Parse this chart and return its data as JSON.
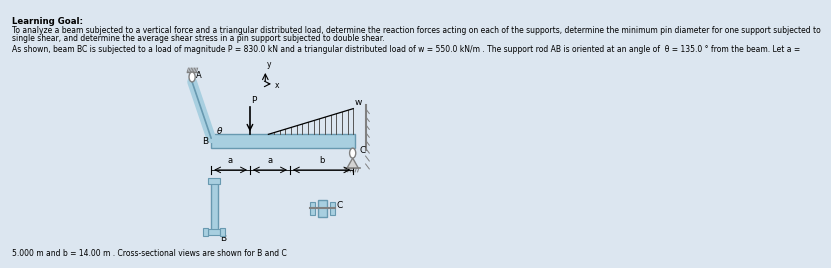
{
  "bg_color": "#dce6f0",
  "title_text": "Learning Goal:",
  "line1": "To analyze a beam subjected to a vertical force and a triangular distributed load, determine the reaction forces acting on each of the supports, determine the minimum pin diameter for one support subjected to",
  "line2": "single shear, and determine the average shear stress in a pin support subjected to double shear.",
  "line3": "As shown, beam BC is subjected to a load of magnitude P = 830.0 kN and a triangular distributed load of w = 550.0 kN/m . The support rod AB is oriented at an angle of  θ = 135.0 ° from the beam. Let a =",
  "footer": "5.000 m and b = 14.00 m . Cross-sectional views are shown for B and C",
  "beam_color": "#a8cfe0",
  "beam_outline": "#6899b0",
  "rod_color": "#a8cfe0",
  "text_color": "#000000",
  "gray": "#888888",
  "light_gray": "#cccccc",
  "dark_gray": "#555555",
  "hatch_color": "#777777"
}
